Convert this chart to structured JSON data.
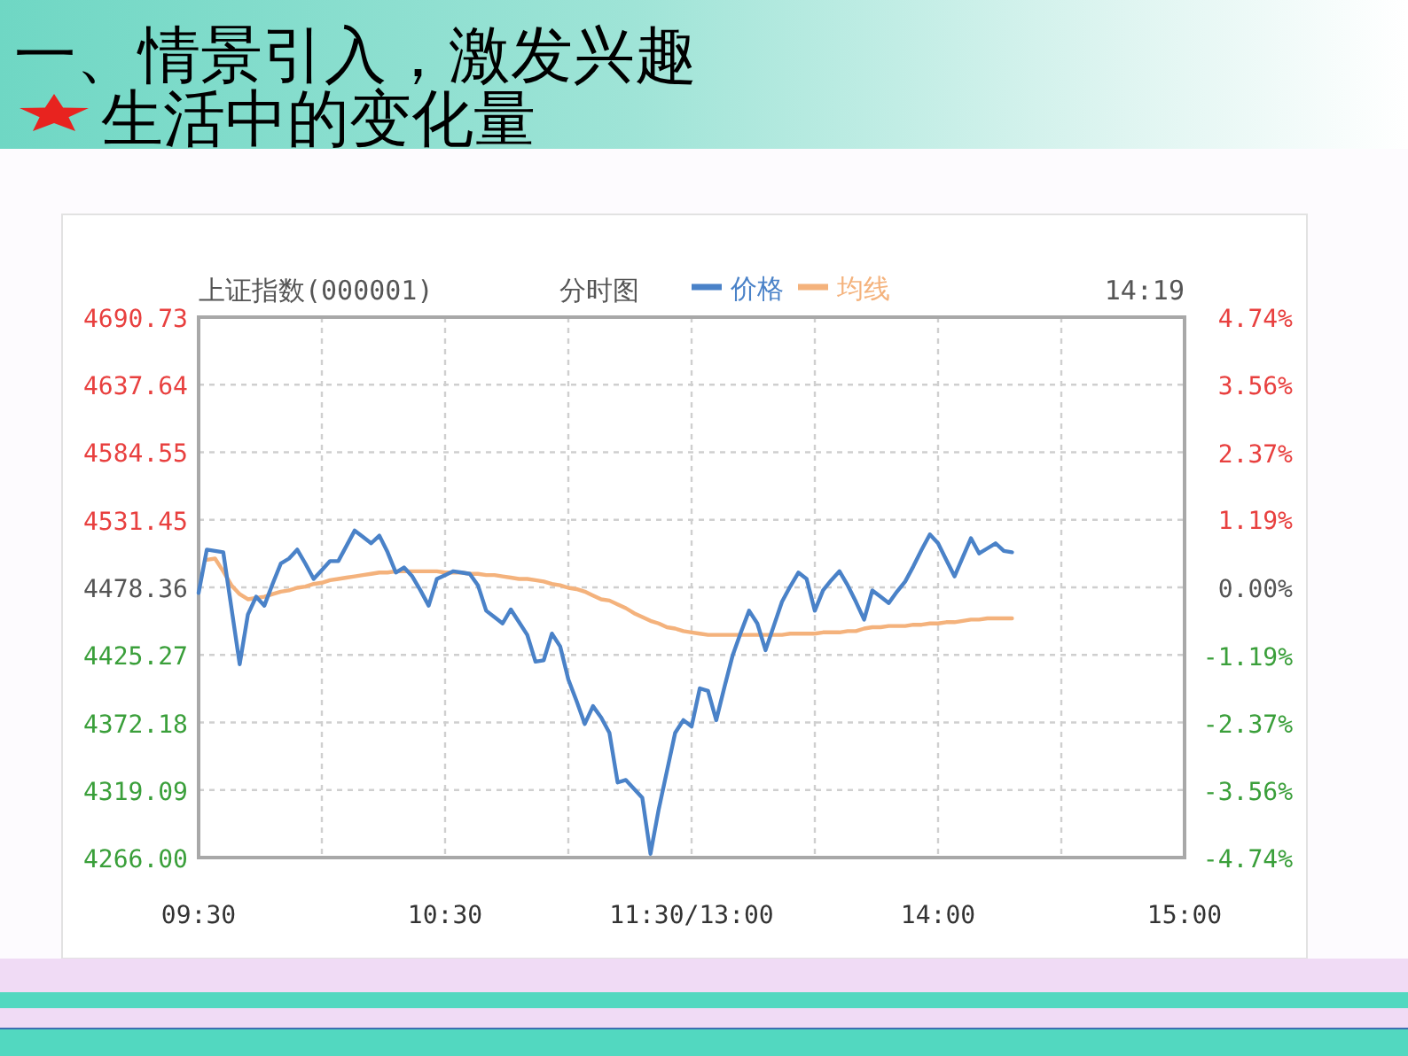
{
  "chart_data": {
    "type": "line",
    "title": "一、情景引入，激发兴趣",
    "subtitle": "生活中的变化量",
    "annotations": [
      "上证指数(000001)",
      "分时图",
      "14:19"
    ],
    "categories": [
      "09:30",
      null,
      null,
      null,
      null,
      null,
      null,
      null,
      null,
      null,
      null,
      null,
      null,
      null,
      null,
      null,
      null,
      null,
      null,
      null,
      null,
      null,
      null,
      null,
      null,
      null,
      null,
      null,
      null,
      null,
      "10:30",
      null,
      null,
      null,
      null,
      null,
      null,
      null,
      null,
      null,
      null,
      null,
      null,
      null,
      null,
      null,
      null,
      null,
      null,
      null,
      null,
      null,
      null,
      null,
      null,
      null,
      null,
      null,
      null,
      null,
      "11:30/13:00",
      null,
      null,
      null,
      null,
      null,
      null,
      null,
      null,
      null,
      null,
      null,
      null,
      null,
      null,
      null,
      null,
      null,
      null,
      null,
      null,
      null,
      null,
      null,
      null,
      null,
      null,
      null,
      null,
      null,
      "14:00",
      null,
      null,
      null,
      null,
      null,
      null,
      null,
      null,
      null,
      null,
      null,
      null,
      null,
      null,
      null,
      null,
      null,
      null,
      null,
      null,
      null,
      null,
      null,
      null,
      null,
      null,
      null,
      null,
      null,
      "15:00"
    ],
    "ylim": [
      4266.0,
      4690.73
    ],
    "yticks": [
      4690.73,
      4637.64,
      4584.55,
      4531.45,
      4478.36,
      4425.27,
      4372.18,
      4319.09,
      {
        "value": 4266.0,
        "label": "4266.00"
      }
    ],
    "y2lim": [
      -4.74,
      4.74
    ],
    "y2ticks": [
      {
        "value": 4.74,
        "label": "4.74%"
      },
      {
        "value": 3.56,
        "label": "3.56%"
      },
      {
        "value": 2.37,
        "label": "2.37%"
      },
      {
        "value": 1.19,
        "label": "1.19%"
      },
      {
        "value": 0,
        "label": "0.00%"
      },
      {
        "value": -1.19,
        "label": "-1.19%"
      },
      {
        "value": -2.37,
        "label": "-2.37%"
      },
      {
        "value": -3.56,
        "label": "-3.56%"
      },
      {
        "value": -4.74,
        "label": "-4.74%"
      }
    ],
    "grid": true,
    "legend": "top",
    "series": [
      {
        "name": "价格",
        "color": "#4a82c8",
        "values": [
          4474,
          4508,
          4507,
          4506,
          4462,
          4418,
          4457,
          4471,
          4464,
          4481,
          4497,
          4501,
          4508,
          4497,
          4485,
          4492,
          4499,
          4499,
          4511,
          4523,
          4518,
          4513,
          4519,
          4506,
          4490,
          4494,
          4487,
          4476,
          4464,
          4485,
          4488,
          4491,
          4490,
          4489,
          4480,
          4460,
          4455,
          4450,
          4461,
          4451,
          4441,
          4420,
          4421,
          4442,
          4432,
          4406,
          4389,
          4371,
          4385,
          4376,
          4364,
          4325,
          4327,
          4320,
          4313,
          4269,
          4304,
          4334,
          4364,
          4374,
          4369,
          4399,
          4397,
          4374,
          4400,
          4425,
          4443,
          4460,
          4450,
          4429,
          4448,
          4467,
          4479,
          4490,
          4485,
          4460,
          4476,
          4484,
          4491,
          4480,
          4467,
          4453,
          4476,
          4471,
          4466,
          4475,
          4483,
          4495,
          4508,
          4520,
          4513,
          4500,
          4487,
          4502,
          4517,
          4505,
          4509,
          4513,
          4507,
          4506,
          null,
          null,
          null,
          null,
          null,
          null,
          null,
          null,
          null,
          null,
          null,
          null,
          null,
          null,
          null,
          null,
          null,
          null,
          null,
          null,
          null
        ]
      },
      {
        "name": "均线",
        "color": "#f4b27c",
        "values": [
          null,
          4500,
          4501,
          4491,
          4480,
          4473,
          4469,
          4470,
          4471,
          4473,
          4475,
          4476,
          4478,
          4479,
          4481,
          4482,
          4484,
          4485,
          4486,
          4487,
          4488,
          4489,
          4490,
          4490,
          4491,
          4491,
          4491,
          4491,
          4491,
          4491,
          4490,
          4490,
          4490,
          4489,
          4489,
          4488,
          4488,
          4487,
          4486,
          4485,
          4485,
          4484,
          4483,
          4481,
          4480,
          4478,
          4477,
          4475,
          4472,
          4469,
          4468,
          4465,
          4462,
          4458,
          4455,
          4452,
          4450,
          4447,
          4446,
          4444,
          4443,
          4442,
          4441,
          4441,
          4441,
          4441,
          4441,
          4441,
          4441,
          4441,
          4441,
          4441,
          4442,
          4442,
          4442,
          4442,
          4443,
          4443,
          4443,
          4444,
          4444,
          4446,
          4447,
          4447,
          4448,
          4448,
          4448,
          4449,
          4449,
          4450,
          4450,
          4451,
          4451,
          4452,
          4453,
          4453,
          4454,
          4454,
          4454,
          4454,
          null,
          null,
          null,
          null,
          null,
          null,
          null,
          null,
          null,
          null,
          null,
          null,
          null,
          null,
          null,
          null,
          null,
          null,
          null,
          null,
          null
        ]
      }
    ]
  }
}
